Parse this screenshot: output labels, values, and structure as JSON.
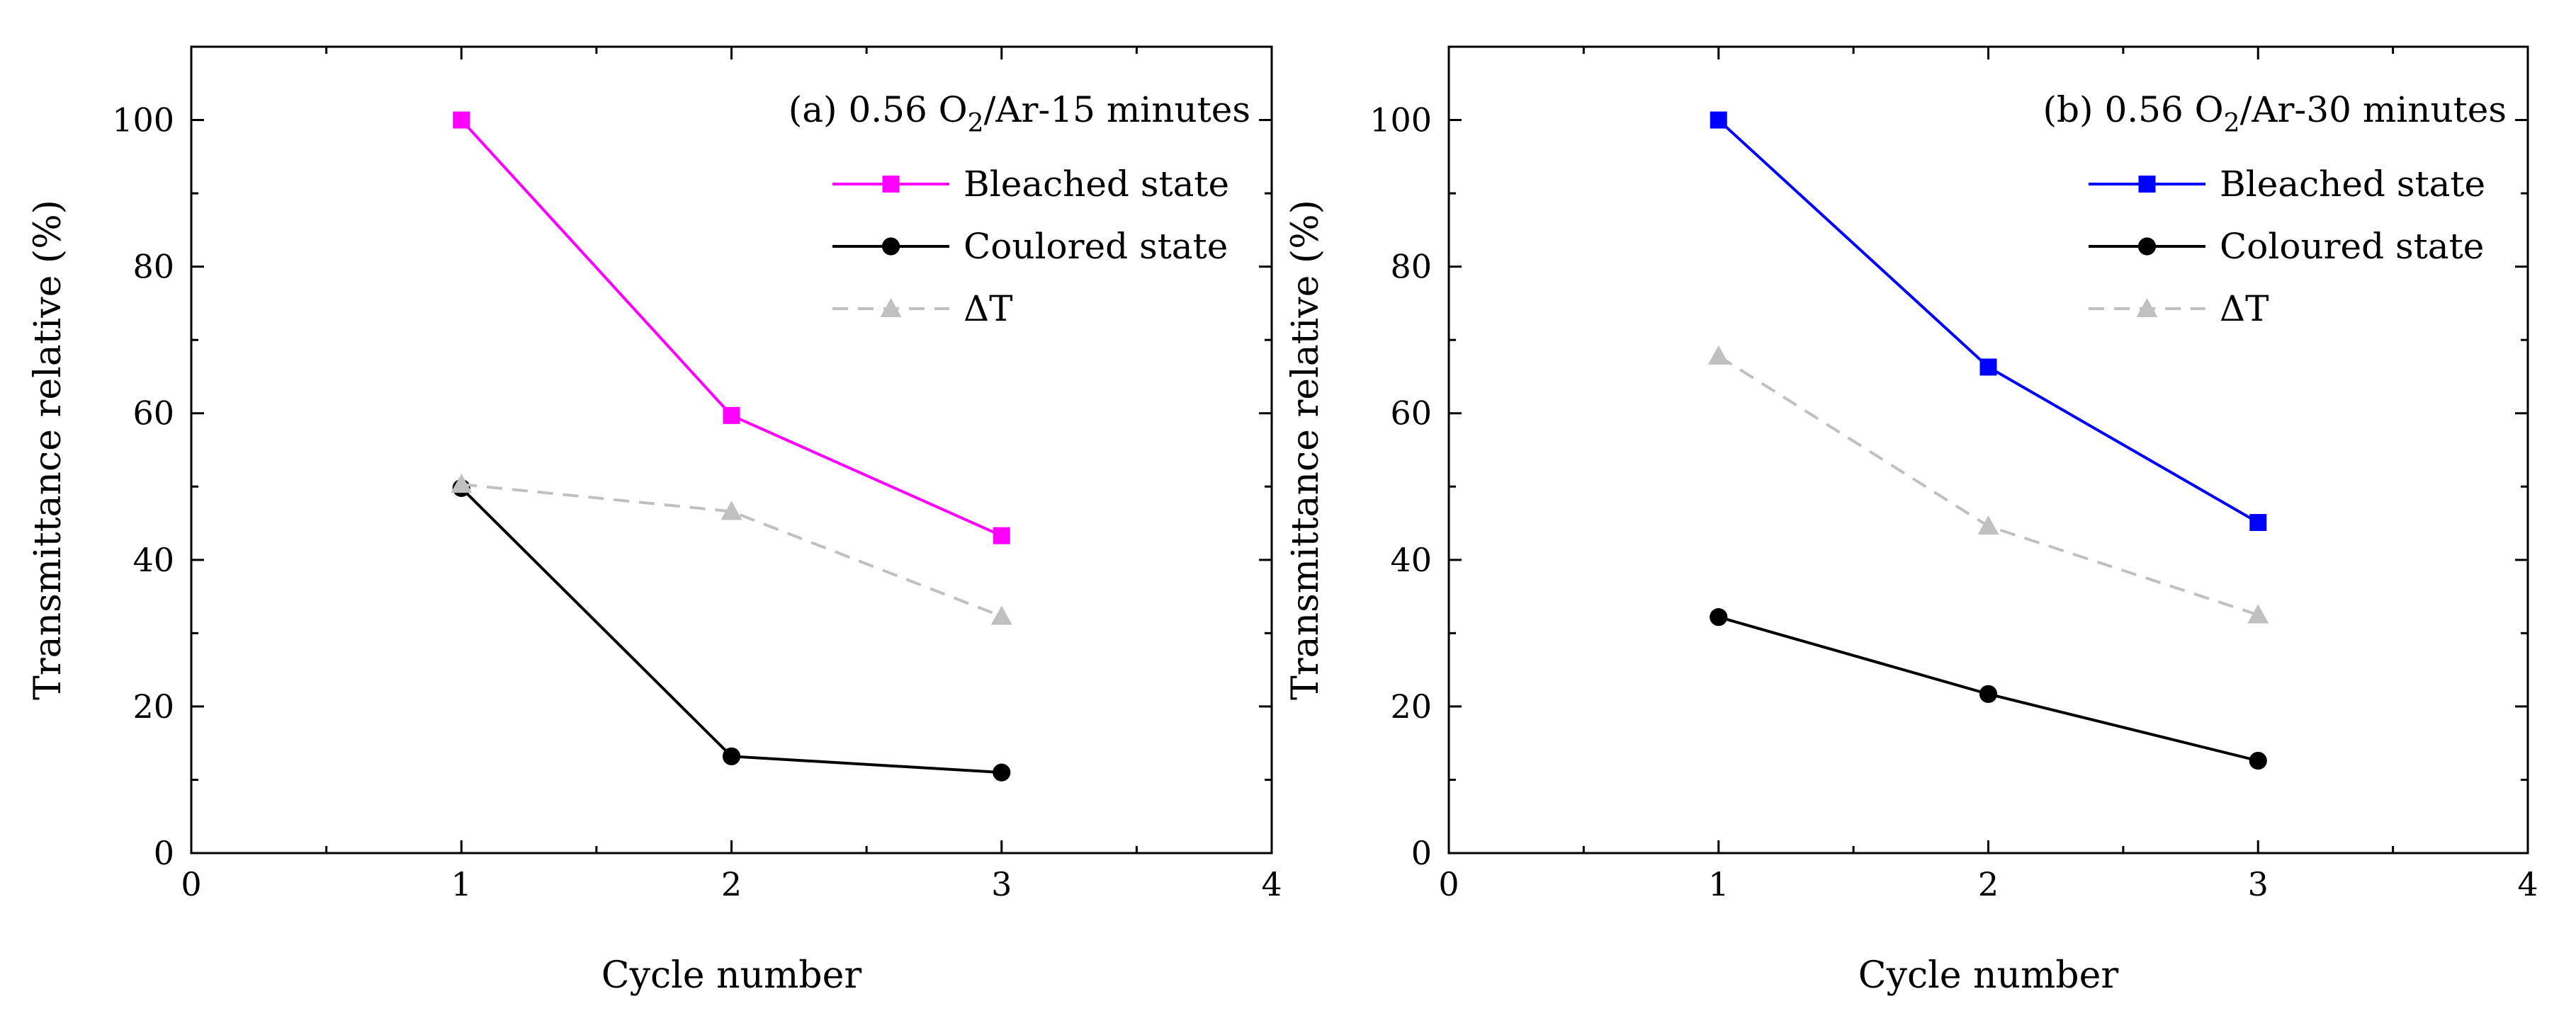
{
  "chart_data": [
    {
      "type": "line",
      "panel": "a",
      "title": "(a) 0.56 O2/Ar-15 minutes",
      "title_parts": {
        "prefix": "(a) 0.56 O",
        "subscript": "2",
        "suffix": "/Ar-15 minutes"
      },
      "xlabel": "Cycle number",
      "ylabel": "Transmittance relative (%)",
      "xlim": [
        0,
        4
      ],
      "ylim": [
        0,
        110
      ],
      "xticks": [
        0,
        1,
        2,
        3,
        4
      ],
      "yticks": [
        0,
        20,
        40,
        60,
        80,
        100
      ],
      "legend_position": "top-right",
      "series": [
        {
          "name": "Bleached state",
          "color": "#ff00ff",
          "marker": "square",
          "dash": "solid",
          "x": [
            1,
            2,
            3
          ],
          "values": [
            100,
            59.7,
            43.3
          ]
        },
        {
          "name": "Coulored state",
          "color": "#000000",
          "marker": "circle",
          "dash": "solid",
          "x": [
            1,
            2,
            3
          ],
          "values": [
            49.8,
            13.2,
            11.0
          ]
        },
        {
          "name": "ΔT",
          "color": "#c0c0c0",
          "marker": "triangle",
          "dash": "dashed",
          "x": [
            1,
            2,
            3
          ],
          "values": [
            50.3,
            46.6,
            32.3
          ]
        }
      ]
    },
    {
      "type": "line",
      "panel": "b",
      "title": "(b) 0.56 O2/Ar-30 minutes",
      "title_parts": {
        "prefix": "(b) 0.56 O",
        "subscript": "2",
        "suffix": "/Ar-30 minutes"
      },
      "xlabel": "Cycle number",
      "ylabel": "Transmittance relative (%)",
      "xlim": [
        0,
        4
      ],
      "ylim": [
        0,
        110
      ],
      "xticks": [
        0,
        1,
        2,
        3,
        4
      ],
      "yticks": [
        0,
        20,
        40,
        60,
        80,
        100
      ],
      "legend_position": "top-right",
      "series": [
        {
          "name": "Bleached state",
          "color": "#0000ff",
          "marker": "square",
          "dash": "solid",
          "x": [
            1,
            2,
            3
          ],
          "values": [
            100,
            66.3,
            45.1
          ]
        },
        {
          "name": "Coloured state",
          "color": "#000000",
          "marker": "circle",
          "dash": "solid",
          "x": [
            1,
            2,
            3
          ],
          "values": [
            32.2,
            21.7,
            12.6
          ]
        },
        {
          "name": "ΔT",
          "color": "#c0c0c0",
          "marker": "triangle",
          "dash": "dashed",
          "x": [
            1,
            2,
            3
          ],
          "values": [
            67.8,
            44.6,
            32.5
          ]
        }
      ]
    }
  ]
}
